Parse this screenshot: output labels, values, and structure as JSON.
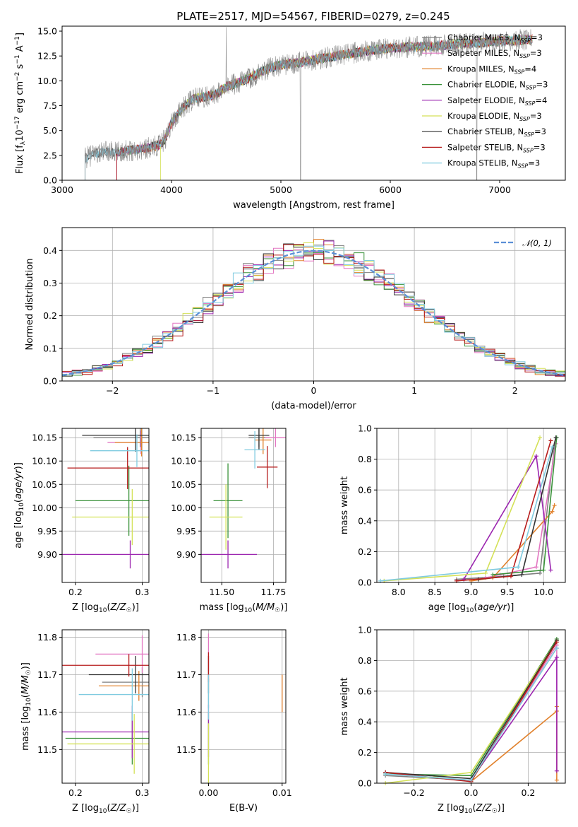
{
  "figure_title": "PLATE=2517, MJD=54567, FIBERID=0279, z=0.245",
  "models": [
    {
      "name": "Chabrier MILES",
      "nssp": "3",
      "color": "#7f7f7f"
    },
    {
      "name": "Salpeter MILES",
      "nssp": "3",
      "color": "#e377c2"
    },
    {
      "name": "Kroupa MILES",
      "nssp": "4",
      "color": "#e1812c"
    },
    {
      "name": "Chabrier ELODIE",
      "nssp": "3",
      "color": "#3a923a"
    },
    {
      "name": "Salpeter ELODIE",
      "nssp": "4",
      "color": "#9c27b0"
    },
    {
      "name": "Kroupa ELODIE",
      "nssp": "3",
      "color": "#d4e157"
    },
    {
      "name": "Chabrier STELIB",
      "nssp": "3",
      "color": "#333333"
    },
    {
      "name": "Salpeter STELIB",
      "nssp": "3",
      "color": "#b71c1c"
    },
    {
      "name": "Kroupa STELIB",
      "nssp": "3",
      "color": "#80cbe0"
    }
  ],
  "chart_data": [
    {
      "id": "spectrum",
      "type": "line",
      "xlabel": "wavelength [Angstrom, rest frame]",
      "ylabel": "Flux [f_λ 10^-17 erg cm^-2 s^-1 A^-1]",
      "xlim": [
        3000,
        7600
      ],
      "ylim": [
        0,
        15.5
      ],
      "xticks": [
        3000,
        4000,
        5000,
        6000,
        7000
      ],
      "yticks": [
        0.0,
        2.5,
        5.0,
        7.5,
        10.0,
        12.5,
        15.0
      ],
      "ytick_labels": [
        "0.0",
        "2.5",
        "5.0",
        "7.5",
        "10.0",
        "12.5",
        "15.0"
      ],
      "grid": false,
      "legend": "top-right",
      "continuum": {
        "x": [
          3210,
          3300,
          3400,
          3500,
          3600,
          3700,
          3800,
          3900,
          3950,
          4000,
          4100,
          4200,
          4300,
          4400,
          4500,
          4600,
          4700,
          4800,
          4900,
          5000,
          5200,
          5400,
          5600,
          5800,
          6000,
          6200,
          6400,
          6600,
          6800,
          7000,
          7200,
          7300
        ],
        "y": [
          2.2,
          2.7,
          2.9,
          2.8,
          3.0,
          3.1,
          3.3,
          3.6,
          4.3,
          5.8,
          7.2,
          8.2,
          8.4,
          8.6,
          9.4,
          9.8,
          10.2,
          10.8,
          11.3,
          11.6,
          11.9,
          12.3,
          12.7,
          13.0,
          13.3,
          13.4,
          13.5,
          13.7,
          13.8,
          14.0,
          14.1,
          14.2
        ]
      },
      "model_start_x": [
        3210,
        3500,
        3500,
        3500,
        3500,
        3900,
        3210,
        3500,
        3210
      ]
    },
    {
      "id": "residuals",
      "type": "step",
      "xlabel": "(data-model)/error",
      "ylabel": "Normed distribution",
      "xlim": [
        -2.5,
        2.5
      ],
      "ylim": [
        0,
        0.47
      ],
      "xticks": [
        -2,
        -1,
        0,
        1,
        2
      ],
      "xtick_labels": [
        "−2",
        "−1",
        "0",
        "1",
        "2"
      ],
      "yticks": [
        0.0,
        0.1,
        0.2,
        0.3,
        0.4
      ],
      "ytick_labels": [
        "0.0",
        "0.1",
        "0.2",
        "0.3",
        "0.4"
      ],
      "grid": true,
      "legend": "top-right",
      "reference": "𝒩(0, 1)",
      "bin_width": 0.1
    },
    {
      "id": "age_vs_Z",
      "type": "errorbar",
      "xlabel": "Z [log10(Z/Z☉)]",
      "ylabel": "age [log10(age/yr)]",
      "xlim": [
        0.18,
        0.31
      ],
      "ylim": [
        9.84,
        10.17
      ],
      "xticks": [
        0.2,
        0.3
      ],
      "xtick_labels": [
        "0.2",
        "0.3"
      ],
      "yticks": [
        9.9,
        9.95,
        10.0,
        10.05,
        10.1,
        10.15
      ],
      "ytick_labels": [
        "9.90",
        "9.95",
        "10.00",
        "10.05",
        "10.10",
        "10.15"
      ],
      "grid": true,
      "points": [
        {
          "m": 0,
          "x": 0.297,
          "xerr": 0.07,
          "y": 10.15,
          "yerr": 0.02
        },
        {
          "m": 1,
          "x": 0.298,
          "xerr": 0.05,
          "y": 10.14,
          "yerr": 0.025
        },
        {
          "m": 2,
          "x": 0.299,
          "xerr": 0.04,
          "y": 10.14,
          "yerr": 0.03
        },
        {
          "m": 3,
          "x": 0.28,
          "xerr": 0.08,
          "y": 10.015,
          "yerr": 0.075
        },
        {
          "m": 4,
          "x": 0.282,
          "xerr": 0.11,
          "y": 9.9,
          "yerr": 0.03
        },
        {
          "m": 5,
          "x": 0.285,
          "xerr": 0.09,
          "y": 9.98,
          "yerr": 0.06
        },
        {
          "m": 6,
          "x": 0.29,
          "xerr": 0.08,
          "y": 10.155,
          "yerr": 0.035
        },
        {
          "m": 7,
          "x": 0.278,
          "xerr": 0.09,
          "y": 10.085,
          "yerr": 0.045
        },
        {
          "m": 8,
          "x": 0.292,
          "xerr": 0.07,
          "y": 10.122,
          "yerr": 0.035
        }
      ]
    },
    {
      "id": "age_vs_mass",
      "type": "errorbar",
      "xlabel": "mass [log10(M/M☉)]",
      "ylabel": "",
      "xlim": [
        11.4,
        11.81
      ],
      "ylim": [
        9.84,
        10.17
      ],
      "xticks": [
        11.5,
        11.75
      ],
      "xtick_labels": [
        "11.50",
        "11.75"
      ],
      "yticks": [
        9.9,
        9.95,
        10.0,
        10.05,
        10.1,
        10.15
      ],
      "ytick_labels": [
        "9.90",
        "9.95",
        "10.00",
        "10.05",
        "10.10",
        "10.15"
      ],
      "grid": true,
      "points": [
        {
          "m": 0,
          "x": 11.68,
          "xerr": 0.05,
          "y": 10.15,
          "yerr": 0.02
        },
        {
          "m": 1,
          "x": 11.76,
          "xerr": 0.05,
          "y": 10.15,
          "yerr": 0.02
        },
        {
          "m": 2,
          "x": 11.7,
          "xerr": 0.04,
          "y": 10.145,
          "yerr": 0.03
        },
        {
          "m": 3,
          "x": 11.53,
          "xerr": 0.07,
          "y": 10.015,
          "yerr": 0.08
        },
        {
          "m": 4,
          "x": 11.53,
          "xerr": 0.14,
          "y": 9.9,
          "yerr": 0.03
        },
        {
          "m": 5,
          "x": 11.52,
          "xerr": 0.08,
          "y": 9.98,
          "yerr": 0.07
        },
        {
          "m": 6,
          "x": 11.68,
          "xerr": 0.05,
          "y": 10.155,
          "yerr": 0.03
        },
        {
          "m": 7,
          "x": 11.72,
          "xerr": 0.05,
          "y": 10.087,
          "yerr": 0.045
        },
        {
          "m": 8,
          "x": 11.66,
          "xerr": 0.05,
          "y": 10.124,
          "yerr": 0.04
        }
      ]
    },
    {
      "id": "weight_vs_age",
      "type": "line",
      "xlabel": "age [log10(age/yr)]",
      "ylabel": "mass weight",
      "xlim": [
        7.7,
        10.3
      ],
      "ylim": [
        0,
        1.0
      ],
      "xticks": [
        8.0,
        8.5,
        9.0,
        9.5,
        10.0
      ],
      "xtick_labels": [
        "8.0",
        "8.5",
        "9.0",
        "9.5",
        "10.0"
      ],
      "yticks": [
        0,
        0.2,
        0.4,
        0.6,
        0.8,
        1.0
      ],
      "ytick_labels": [
        "0.0",
        "0.2",
        "0.4",
        "0.6",
        "0.8",
        "1.0"
      ],
      "grid": true,
      "series": [
        {
          "m": 0,
          "x": [
            8.8,
            9.45,
            9.95,
            10.15
          ],
          "y": [
            0.02,
            0.04,
            0.06,
            0.88
          ]
        },
        {
          "m": 1,
          "x": [
            9.2,
            9.4,
            9.9,
            10.17
          ],
          "y": [
            0.03,
            0.05,
            0.1,
            0.9
          ]
        },
        {
          "m": 2,
          "x": [
            9.0,
            9.3,
            10.12,
            10.15
          ],
          "y": [
            0.01,
            0.03,
            0.46,
            0.5
          ]
        },
        {
          "m": 3,
          "x": [
            9.3,
            10.0,
            10.18
          ],
          "y": [
            0.05,
            0.08,
            0.94
          ]
        },
        {
          "m": 4,
          "x": [
            8.9,
            9.9,
            10.1
          ],
          "y": [
            0.02,
            0.82,
            0.08
          ]
        },
        {
          "m": 5,
          "x": [
            7.8,
            9.2,
            9.95
          ],
          "y": [
            0.01,
            0.06,
            0.94
          ]
        },
        {
          "m": 6,
          "x": [
            9.1,
            9.7,
            10.17
          ],
          "y": [
            0.02,
            0.05,
            0.94
          ]
        },
        {
          "m": 7,
          "x": [
            8.8,
            9.55,
            10.1
          ],
          "y": [
            0.01,
            0.04,
            0.92
          ]
        },
        {
          "m": 8,
          "x": [
            7.75,
            9.65,
            10.12
          ],
          "y": [
            0.01,
            0.1,
            0.88
          ]
        }
      ]
    },
    {
      "id": "mass_vs_Z",
      "type": "errorbar",
      "xlabel": "Z [log10(Z/Z☉)]",
      "ylabel": "mass [log10(M/M☉)]",
      "xlim": [
        0.18,
        0.31
      ],
      "ylim": [
        11.41,
        11.82
      ],
      "xticks": [
        0.2,
        0.3
      ],
      "xtick_labels": [
        "0.2",
        "0.3"
      ],
      "yticks": [
        11.5,
        11.6,
        11.7,
        11.8
      ],
      "ytick_labels": [
        "11.5",
        "11.6",
        "11.7",
        "11.8"
      ],
      "grid": true,
      "points": [
        {
          "m": 0,
          "x": 0.3,
          "xerr": 0.06,
          "y": 11.68,
          "yerr": 0.04
        },
        {
          "m": 1,
          "x": 0.3,
          "xerr": 0.07,
          "y": 11.755,
          "yerr": 0.05
        },
        {
          "m": 2,
          "x": 0.295,
          "xerr": 0.06,
          "y": 11.67,
          "yerr": 0.04
        },
        {
          "m": 3,
          "x": 0.285,
          "xerr": 0.1,
          "y": 11.53,
          "yerr": 0.07
        },
        {
          "m": 4,
          "x": 0.285,
          "xerr": 0.11,
          "y": 11.547,
          "yerr": 0.07
        },
        {
          "m": 5,
          "x": 0.288,
          "xerr": 0.1,
          "y": 11.515,
          "yerr": 0.08
        },
        {
          "m": 6,
          "x": 0.29,
          "xerr": 0.07,
          "y": 11.7,
          "yerr": 0.05
        },
        {
          "m": 7,
          "x": 0.28,
          "xerr": 0.11,
          "y": 11.725,
          "yerr": 0.03
        },
        {
          "m": 8,
          "x": 0.285,
          "xerr": 0.08,
          "y": 11.647,
          "yerr": 0.07
        }
      ]
    },
    {
      "id": "mass_vs_ebv",
      "type": "errorbar",
      "xlabel": "E(B-V)",
      "ylabel": "",
      "xlim": [
        -0.001,
        0.0105
      ],
      "ylim": [
        11.41,
        11.82
      ],
      "xticks": [
        0.0,
        0.01
      ],
      "xtick_labels": [
        "0.00",
        "0.01"
      ],
      "yticks": [
        11.5,
        11.6,
        11.7,
        11.8
      ],
      "ytick_labels": [
        "11.5",
        "11.6",
        "11.7",
        "11.8"
      ],
      "grid": true,
      "points": [
        {
          "m": 0,
          "x": 0.0,
          "xerr": 0,
          "y": 11.65,
          "yerr": 0.04
        },
        {
          "m": 1,
          "x": 0.0,
          "xerr": 0,
          "y": 11.76,
          "yerr": 0.05
        },
        {
          "m": 2,
          "x": 0.01,
          "xerr": 0,
          "y": 11.65,
          "yerr": 0.05
        },
        {
          "m": 3,
          "x": 0.0,
          "xerr": 0,
          "y": 11.53,
          "yerr": 0.07
        },
        {
          "m": 4,
          "x": 0.0,
          "xerr": 0,
          "y": 11.55,
          "yerr": 0.07
        },
        {
          "m": 5,
          "x": 0.0,
          "xerr": 0,
          "y": 11.48,
          "yerr": 0.09
        },
        {
          "m": 6,
          "x": 0.0,
          "xerr": 0,
          "y": 11.7,
          "yerr": 0.05
        },
        {
          "m": 7,
          "x": 0.0,
          "xerr": 0,
          "y": 11.72,
          "yerr": 0.04
        },
        {
          "m": 8,
          "x": 0.0,
          "xerr": 0,
          "y": 11.64,
          "yerr": 0.06
        }
      ]
    },
    {
      "id": "weight_vs_Z",
      "type": "line",
      "xlabel": "Z [log10(Z/Z☉)]",
      "ylabel": "mass weight",
      "xlim": [
        -0.33,
        0.33
      ],
      "ylim": [
        0,
        1.0
      ],
      "xticks": [
        -0.2,
        0.0,
        0.2
      ],
      "xtick_labels": [
        "−0.2",
        "0.0",
        "0.2"
      ],
      "yticks": [
        0,
        0.2,
        0.4,
        0.6,
        0.8,
        1.0
      ],
      "ytick_labels": [
        "0.0",
        "0.2",
        "0.4",
        "0.6",
        "0.8",
        "1.0"
      ],
      "grid": true,
      "series": [
        {
          "m": 0,
          "x": [
            -0.3,
            0.0,
            0.3
          ],
          "y": [
            0.05,
            0.02,
            0.88
          ]
        },
        {
          "m": 1,
          "x": [
            0.0,
            0.3,
            0.3
          ],
          "y": [
            0.02,
            0.9,
            0.08
          ]
        },
        {
          "m": 2,
          "x": [
            0.0,
            0.3,
            0.3,
            0.3
          ],
          "y": [
            0.01,
            0.47,
            0.5,
            0.02
          ]
        },
        {
          "m": 3,
          "x": [
            -0.3,
            0.0,
            0.3
          ],
          "y": [
            0.06,
            0.05,
            0.94
          ]
        },
        {
          "m": 4,
          "x": [
            0.0,
            0.3,
            0.3
          ],
          "y": [
            0.02,
            0.82,
            0.08
          ]
        },
        {
          "m": 5,
          "x": [
            -0.3,
            0.0,
            0.3
          ],
          "y": [
            0.0,
            0.07,
            0.93
          ]
        },
        {
          "m": 6,
          "x": [
            -0.3,
            0.0,
            0.3
          ],
          "y": [
            0.07,
            0.03,
            0.93
          ]
        },
        {
          "m": 7,
          "x": [
            -0.3,
            0.0,
            0.3
          ],
          "y": [
            0.07,
            0.01,
            0.92
          ]
        },
        {
          "m": 8,
          "x": [
            -0.3,
            0.0,
            0.3
          ],
          "y": [
            0.06,
            0.02,
            0.88
          ]
        }
      ]
    }
  ]
}
